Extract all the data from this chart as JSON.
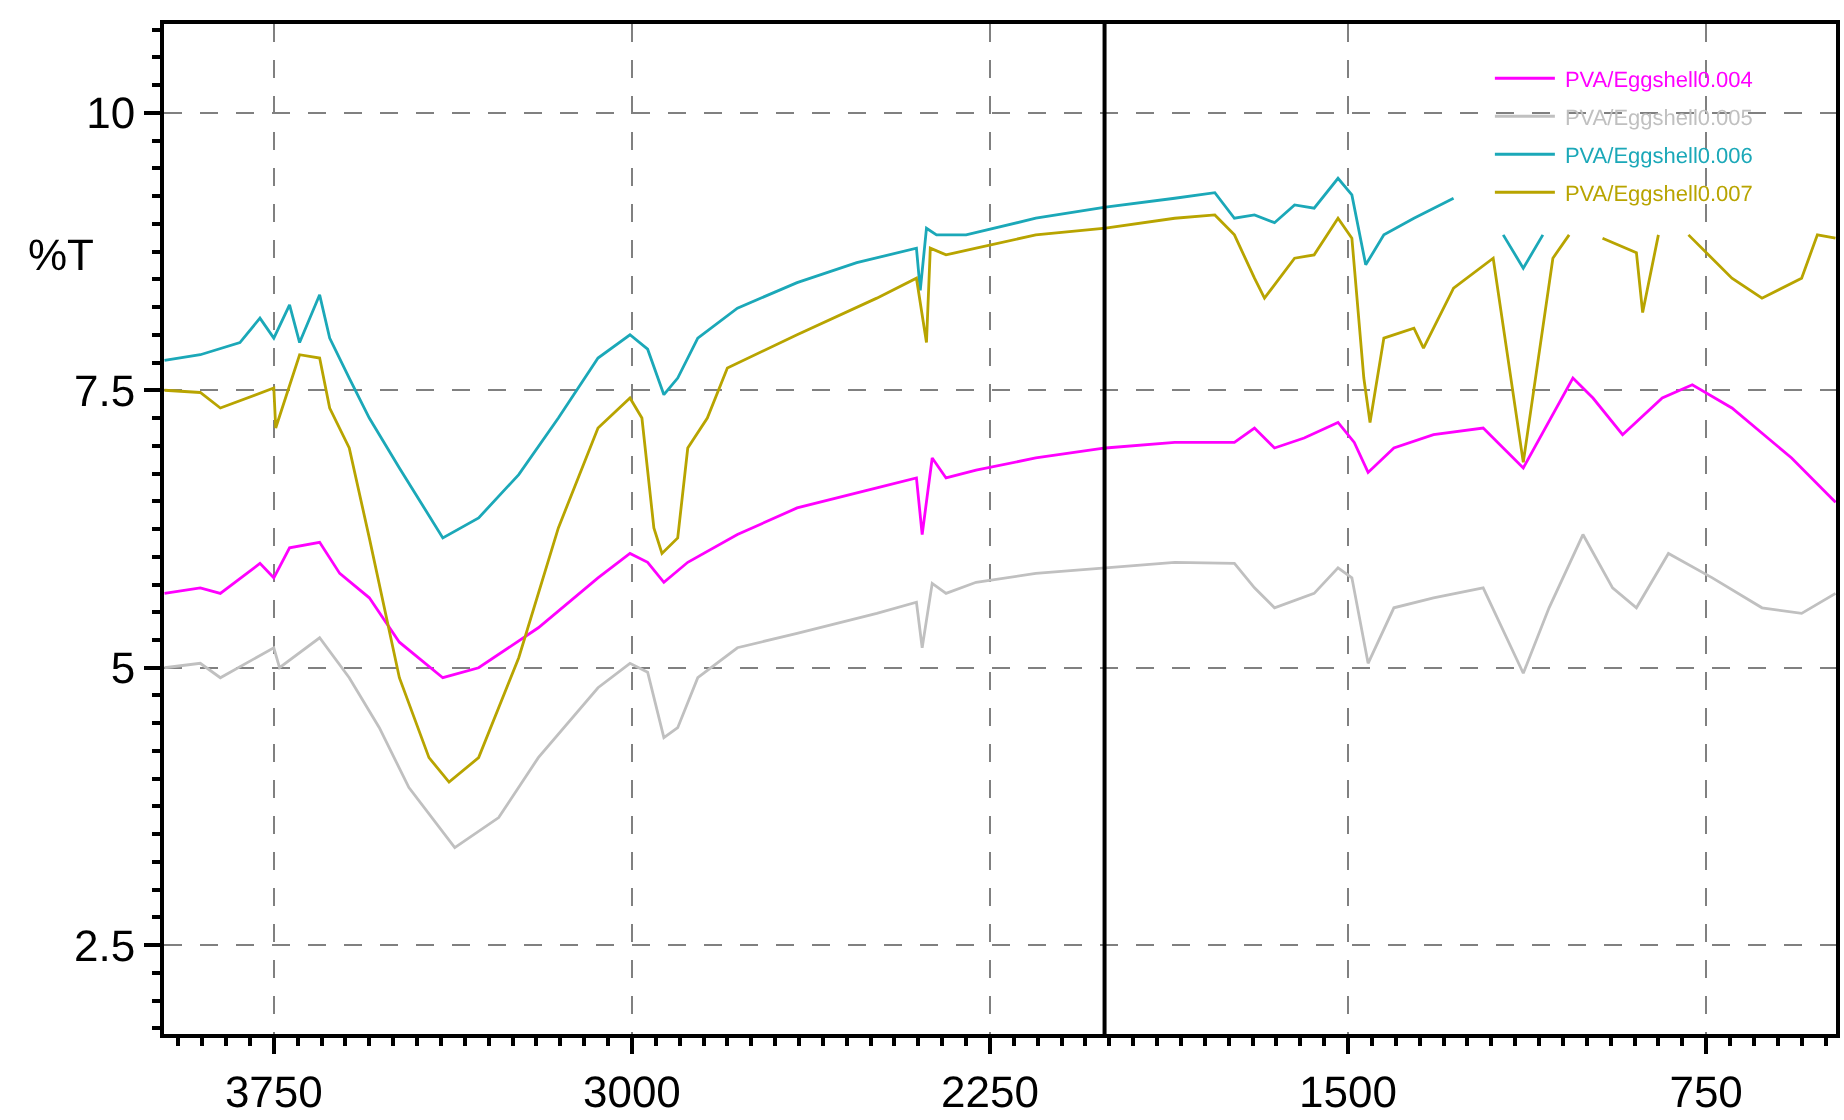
{
  "chart_data": {
    "type": "line",
    "ylabel": "%T",
    "xlim": [
      3980,
      478
    ],
    "ylim": [
      1.7,
      10.8
    ],
    "xticks": [
      3750,
      3000,
      2250,
      1500,
      750
    ],
    "yticks": [
      2.5,
      5,
      7.5,
      10
    ],
    "grid": true,
    "legend": "top right",
    "line_style": "solid",
    "marker": "none",
    "ref_lines": [
      {
        "axis": "x",
        "value": 2010,
        "color": "#000000"
      }
    ],
    "series": [
      {
        "name": "PVA/Eggshell0.004",
        "color": "#ff00ff",
        "x": [
          3979,
          3904,
          3862,
          3779,
          3750,
          3717,
          3654,
          3612,
          3550,
          3487,
          3396,
          3321,
          3196,
          3071,
          3004,
          2967,
          2933,
          2883,
          2779,
          2654,
          2487,
          2404,
          2392,
          2371,
          2342,
          2279,
          2154,
          2008,
          1863,
          1738,
          1696,
          1654,
          1592,
          1521,
          1487,
          1458,
          1404,
          1321,
          1217,
          1133,
          1029,
          987,
          925,
          842,
          779,
          696,
          571,
          479
        ],
        "values": [
          5.67,
          5.72,
          5.67,
          5.94,
          5.81,
          6.08,
          6.13,
          5.85,
          5.63,
          5.23,
          4.91,
          5.0,
          5.36,
          5.81,
          6.03,
          5.95,
          5.77,
          5.95,
          6.2,
          6.44,
          6.62,
          6.71,
          6.2,
          6.89,
          6.71,
          6.78,
          6.89,
          6.98,
          7.03,
          7.03,
          7.16,
          6.98,
          7.07,
          7.21,
          7.03,
          6.76,
          6.98,
          7.1,
          7.16,
          6.8,
          7.61,
          7.43,
          7.1,
          7.43,
          7.55,
          7.34,
          6.89,
          6.49
        ]
      },
      {
        "name": "PVA/Eggshell0.005",
        "color": "#c0c0c0",
        "x": [
          3979,
          3904,
          3862,
          3750,
          3738,
          3654,
          3592,
          3529,
          3467,
          3371,
          3279,
          3196,
          3071,
          3004,
          2967,
          2933,
          2904,
          2862,
          2779,
          2654,
          2487,
          2404,
          2392,
          2371,
          2342,
          2279,
          2154,
          2008,
          1863,
          1738,
          1696,
          1654,
          1571,
          1521,
          1492,
          1458,
          1404,
          1321,
          1217,
          1133,
          1079,
          1008,
          946,
          896,
          829,
          737,
          633,
          550,
          479
        ],
        "values": [
          5.0,
          5.04,
          4.91,
          5.18,
          5.0,
          5.27,
          4.91,
          4.46,
          3.92,
          3.38,
          3.65,
          4.19,
          4.82,
          5.04,
          4.96,
          4.37,
          4.46,
          4.91,
          5.18,
          5.31,
          5.49,
          5.59,
          5.18,
          5.76,
          5.67,
          5.77,
          5.85,
          5.9,
          5.95,
          5.94,
          5.72,
          5.54,
          5.67,
          5.9,
          5.81,
          5.04,
          5.54,
          5.63,
          5.72,
          4.95,
          5.54,
          6.2,
          5.72,
          5.54,
          6.03,
          5.81,
          5.54,
          5.49,
          5.67
        ]
      },
      {
        "name": "PVA/Eggshell0.006",
        "color": "#1ba8b8",
        "x": [
          3979,
          3904,
          3821,
          3779,
          3750,
          3717,
          3696,
          3654,
          3633,
          3592,
          3550,
          3487,
          3396,
          3321,
          3237,
          3154,
          3071,
          3004,
          2967,
          2933,
          2904,
          2862,
          2779,
          2654,
          2529,
          2404,
          2396,
          2383,
          2362,
          2300,
          2154,
          2008,
          1863,
          1779,
          1738,
          1696,
          1654,
          1612,
          1571,
          1521,
          1492,
          1463,
          1425,
          1362,
          1279,
          1250,
          1175,
          1133,
          1092
        ],
        "values": [
          7.77,
          7.82,
          7.93,
          8.15,
          7.97,
          8.27,
          7.93,
          8.36,
          7.97,
          7.61,
          7.25,
          6.8,
          6.17,
          6.35,
          6.74,
          7.25,
          7.79,
          8.0,
          7.87,
          7.46,
          7.61,
          7.97,
          8.24,
          8.47,
          8.65,
          8.78,
          8.4,
          8.96,
          8.9,
          8.9,
          9.05,
          9.15,
          9.23,
          9.28,
          9.05,
          9.08,
          9.01,
          9.17,
          9.14,
          9.41,
          9.26,
          8.63,
          8.9,
          9.05,
          9.23,
          null,
          8.9,
          8.6,
          8.9
        ]
      },
      {
        "name": "PVA/Eggshell0.007",
        "color": "#b8a400",
        "x": [
          3979,
          3904,
          3862,
          3750,
          3746,
          3696,
          3654,
          3633,
          3592,
          3550,
          3487,
          3425,
          3383,
          3321,
          3237,
          3154,
          3071,
          3004,
          2979,
          2954,
          2937,
          2904,
          2883,
          2842,
          2800,
          2654,
          2487,
          2404,
          2383,
          2375,
          2342,
          2279,
          2154,
          2008,
          1863,
          1779,
          1738,
          1696,
          1675,
          1612,
          1571,
          1521,
          1492,
          1467,
          1454,
          1425,
          1362,
          1342,
          1279,
          1196,
          1133,
          1071,
          1037,
          1000,
          967,
          896,
          883,
          850,
          820,
          787,
          696,
          633,
          550,
          517,
          479
        ],
        "values": [
          7.5,
          7.48,
          7.34,
          7.52,
          7.16,
          7.82,
          7.79,
          7.34,
          6.98,
          6.17,
          4.91,
          4.19,
          3.97,
          4.19,
          5.09,
          6.26,
          7.16,
          7.43,
          7.25,
          6.26,
          6.03,
          6.17,
          6.98,
          7.25,
          7.7,
          8.0,
          8.33,
          8.51,
          7.93,
          8.78,
          8.72,
          8.78,
          8.9,
          8.96,
          9.05,
          9.08,
          8.9,
          8.51,
          8.33,
          8.69,
          8.72,
          9.05,
          8.87,
          7.61,
          7.21,
          7.97,
          8.06,
          7.88,
          8.42,
          8.69,
          6.85,
          8.69,
          8.9,
          null,
          8.87,
          8.74,
          8.2,
          8.9,
          null,
          8.9,
          8.51,
          8.33,
          8.51,
          8.9,
          8.87
        ]
      }
    ]
  }
}
